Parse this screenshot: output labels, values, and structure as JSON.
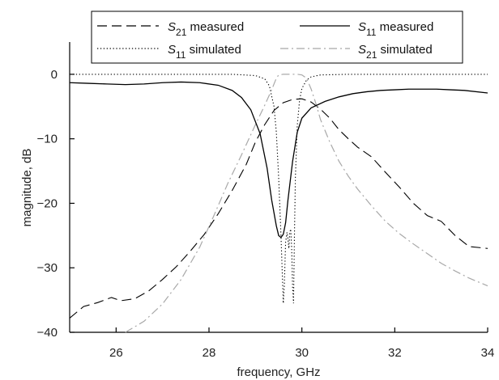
{
  "chart_data": {
    "type": "line",
    "xlabel": "frequency, GHz",
    "ylabel": "magnitude,  dB",
    "xlim": [
      25,
      34
    ],
    "ylim": [
      -40,
      5
    ],
    "xticks": [
      26,
      28,
      30,
      32,
      34
    ],
    "xtick_labels": [
      "26",
      "28",
      "30",
      "32",
      "34"
    ],
    "yticks": [
      0,
      -10,
      -20,
      -30,
      -40
    ],
    "ytick_labels": [
      "0",
      "−10",
      "−20",
      "−30",
      "−40"
    ],
    "grid": false,
    "legend_placement": "top",
    "series": [
      {
        "key": "s21m",
        "name_main": "S",
        "name_sub": "21",
        "name_suffix": " measured",
        "color": "#000000",
        "style": "dashed",
        "x": [
          25.0,
          25.3,
          25.6,
          25.9,
          26.1,
          26.4,
          26.7,
          27.0,
          27.3,
          27.6,
          27.9,
          28.2,
          28.5,
          28.8,
          29.0,
          29.2,
          29.4,
          29.6,
          29.8,
          30.0,
          30.2,
          30.4,
          30.6,
          30.8,
          31.0,
          31.2,
          31.5,
          31.8,
          32.1,
          32.4,
          32.7,
          33.0,
          33.3,
          33.6,
          34.0
        ],
        "y": [
          -37.8,
          -36.0,
          -35.4,
          -34.6,
          -35.1,
          -34.8,
          -33.6,
          -31.8,
          -29.8,
          -27.4,
          -24.8,
          -21.6,
          -18.0,
          -14.0,
          -10.5,
          -7.8,
          -5.6,
          -4.4,
          -3.9,
          -3.8,
          -4.3,
          -5.4,
          -6.8,
          -8.6,
          -10.0,
          -11.3,
          -12.8,
          -15.2,
          -17.5,
          -20.0,
          -21.9,
          -22.8,
          -25.0,
          -26.7,
          -27.0
        ]
      },
      {
        "key": "s11m",
        "name_main": "S",
        "name_sub": "11",
        "name_suffix": " measured",
        "color": "#000000",
        "style": "solid",
        "x": [
          25.0,
          25.4,
          25.8,
          26.2,
          26.6,
          27.0,
          27.4,
          27.8,
          28.2,
          28.5,
          28.7,
          28.9,
          29.1,
          29.25,
          29.35,
          29.45,
          29.5,
          29.55,
          29.6,
          29.65,
          29.7,
          29.8,
          29.9,
          30.0,
          30.2,
          30.5,
          30.8,
          31.1,
          31.4,
          31.7,
          32.0,
          32.3,
          32.6,
          32.9,
          33.2,
          33.5,
          34.0
        ],
        "y": [
          -1.3,
          -1.4,
          -1.5,
          -1.6,
          -1.5,
          -1.3,
          -1.2,
          -1.3,
          -1.7,
          -2.5,
          -3.6,
          -5.5,
          -9.2,
          -14.5,
          -19.5,
          -23.5,
          -25.0,
          -25.3,
          -24.8,
          -23.0,
          -19.5,
          -13.5,
          -9.0,
          -6.8,
          -5.2,
          -4.2,
          -3.5,
          -3.0,
          -2.7,
          -2.5,
          -2.4,
          -2.3,
          -2.3,
          -2.3,
          -2.4,
          -2.5,
          -2.9
        ]
      },
      {
        "key": "s11s",
        "name_main": "S",
        "name_sub": "11",
        "name_suffix": " simulated",
        "color": "#000000",
        "style": "dotted",
        "x": [
          25.0,
          27.0,
          28.5,
          29.0,
          29.2,
          29.3,
          29.4,
          29.45,
          29.5,
          29.55,
          29.6,
          29.62,
          29.65,
          29.68,
          29.7,
          29.72,
          29.74,
          29.76,
          29.78,
          29.8,
          29.82,
          29.84,
          29.86,
          29.9,
          29.95,
          30.0,
          30.1,
          30.2,
          30.4,
          31.0,
          32.0,
          34.0
        ],
        "y": [
          0.0,
          0.0,
          0.0,
          -0.2,
          -0.7,
          -1.8,
          -5.0,
          -9.0,
          -16.0,
          -25.0,
          -35.5,
          -33.0,
          -26.0,
          -24.5,
          -25.5,
          -27.0,
          -24.5,
          -24.0,
          -27.0,
          -33.0,
          -35.5,
          -25.0,
          -16.0,
          -8.0,
          -4.0,
          -2.2,
          -0.9,
          -0.4,
          -0.1,
          0.0,
          0.0,
          0.0
        ]
      },
      {
        "key": "s21s",
        "name_main": "S",
        "name_sub": "21",
        "name_suffix": " simulated",
        "color": "#a8a8a8",
        "style": "dashdot",
        "x": [
          26.2,
          26.6,
          27.0,
          27.4,
          27.8,
          28.1,
          28.4,
          28.7,
          29.0,
          29.2,
          29.35,
          29.45,
          29.5,
          29.6,
          29.8,
          29.9,
          30.0,
          30.1,
          30.2,
          30.3,
          30.4,
          30.6,
          30.8,
          31.0,
          31.2,
          31.5,
          31.8,
          32.1,
          32.4,
          32.7,
          33.0,
          33.3,
          33.6,
          34.0
        ],
        "y": [
          -40.0,
          -38.3,
          -35.6,
          -31.8,
          -26.8,
          -22.0,
          -17.0,
          -12.5,
          -7.8,
          -4.8,
          -2.4,
          -0.6,
          -0.1,
          0.0,
          0.0,
          0.0,
          -0.1,
          -0.6,
          -2.3,
          -4.5,
          -7.0,
          -10.5,
          -13.5,
          -15.8,
          -17.8,
          -20.4,
          -22.8,
          -24.7,
          -26.3,
          -27.8,
          -29.3,
          -30.5,
          -31.6,
          -32.8
        ]
      }
    ]
  }
}
